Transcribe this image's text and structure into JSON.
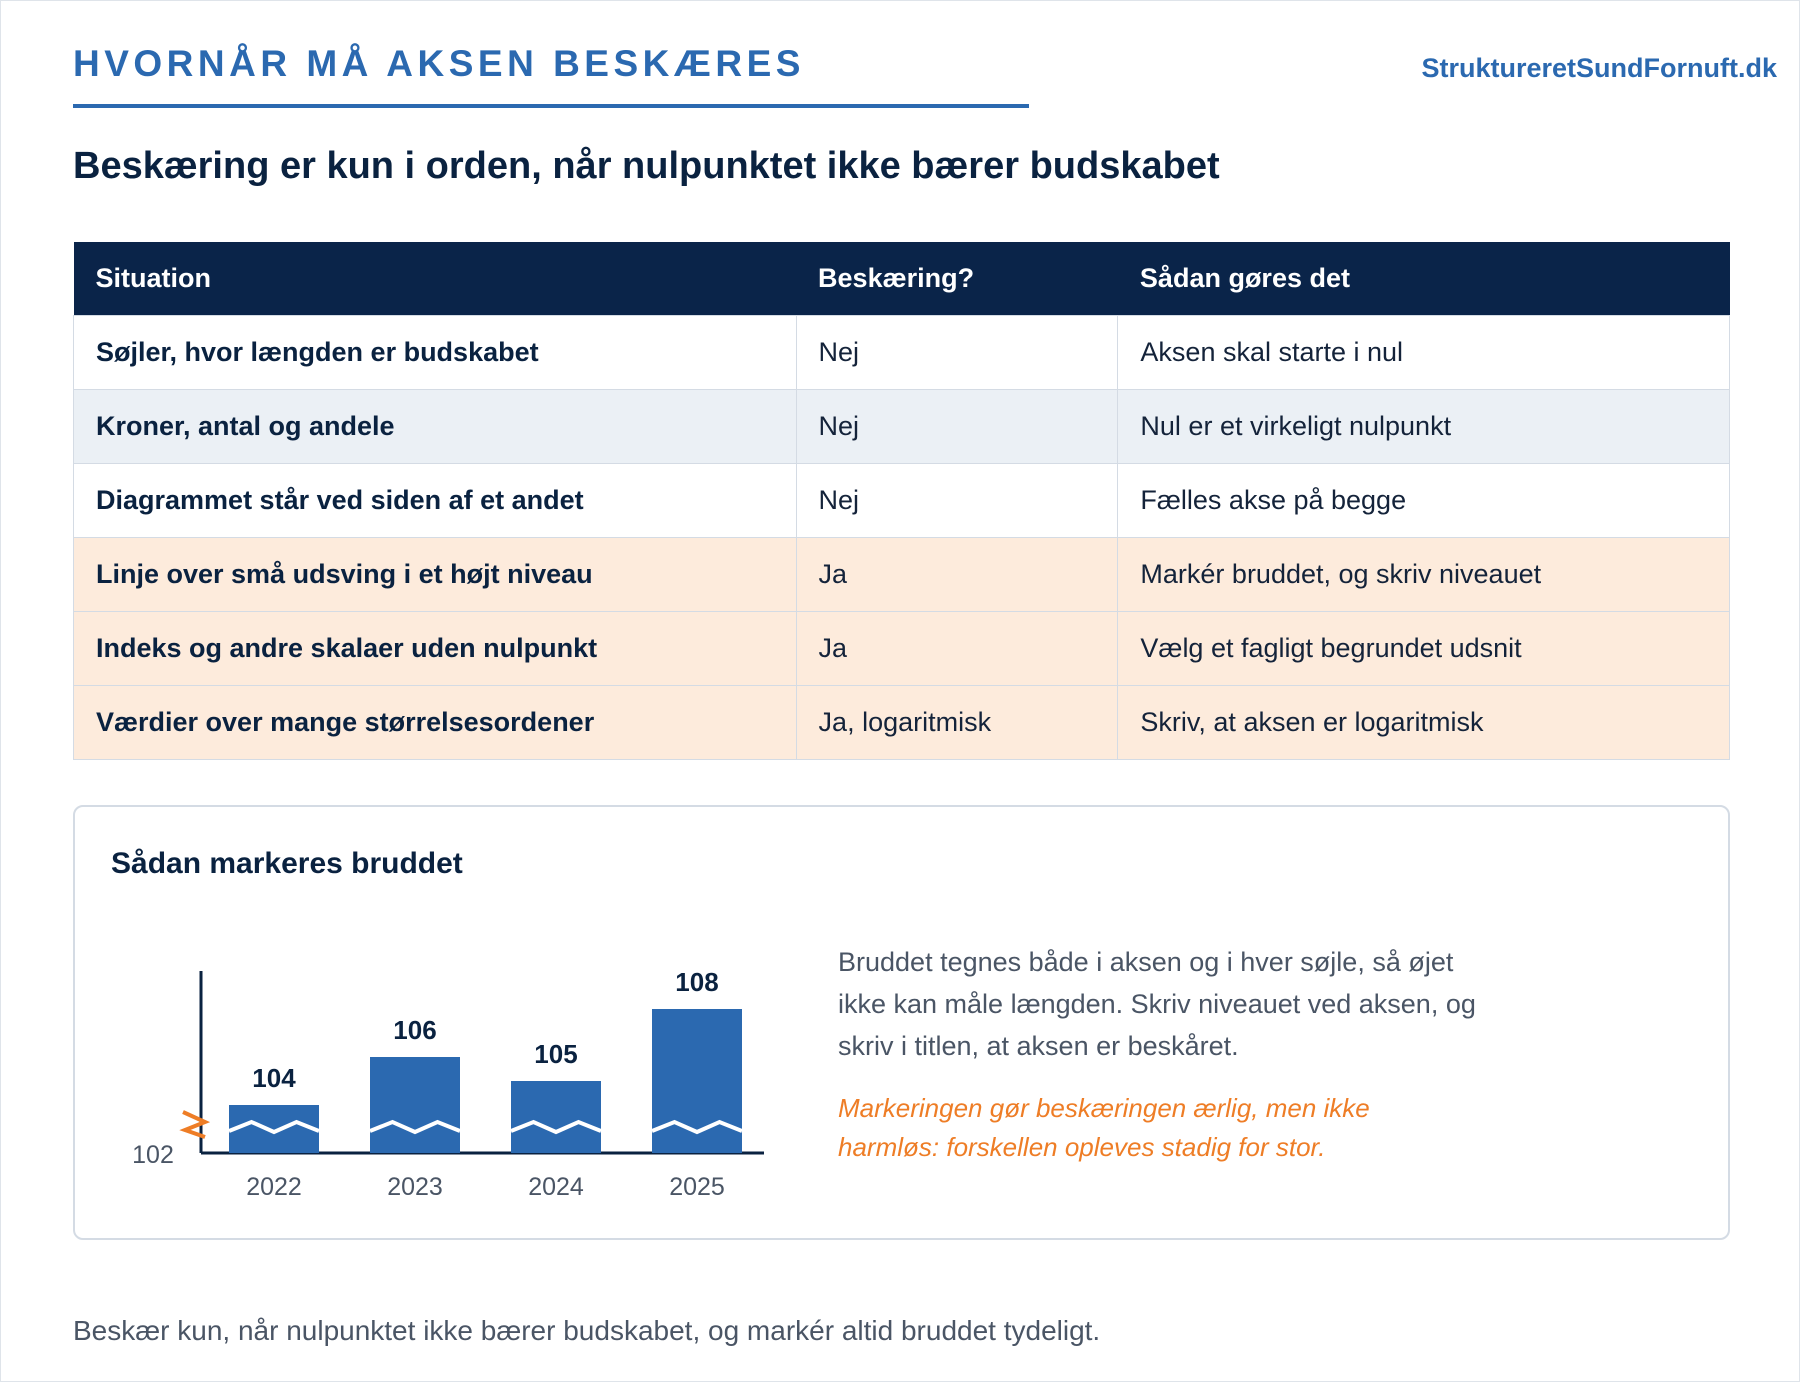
{
  "header": {
    "kicker": "HVORNÅR MÅ AKSEN BESKÆRES",
    "brand": "StruktureretSundFornuft.dk"
  },
  "headline": "Beskæring er kun i orden, når nulpunktet ikke bærer budskabet",
  "table": {
    "columns": [
      "Situation",
      "Beskæring?",
      "Sådan gøres det"
    ],
    "rows": [
      {
        "situation": "Søjler, hvor længden er budskabet",
        "crop": "Nej",
        "how": "Aksen skal starte i nul"
      },
      {
        "situation": "Kroner, antal og andele",
        "crop": "Nej",
        "how": "Nul er et virkeligt nulpunkt"
      },
      {
        "situation": "Diagrammet står ved siden af et andet",
        "crop": "Nej",
        "how": "Fælles akse på begge"
      },
      {
        "situation": "Linje over små udsving i et højt niveau",
        "crop": "Ja",
        "how": "Markér bruddet, og skriv niveauet"
      },
      {
        "situation": "Indeks og andre skalaer uden nulpunkt",
        "crop": "Ja",
        "how": "Vælg et fagligt begrundet udsnit"
      },
      {
        "situation": "Værdier over mange størrelsesordener",
        "crop": "Ja, logaritmisk",
        "how": "Skriv, at aksen er logaritmisk"
      }
    ],
    "colors": {
      "header_bg": "#0a2449",
      "alt_row": "#ebf0f5",
      "yes_row": "#fdebdc"
    }
  },
  "card": {
    "title": "Sådan markeres bruddet",
    "explanation": "Bruddet tegnes både i aksen og i hver søjle, så øjet ikke kan måle længden. Skriv niveauet ved aksen, og skriv i titlen, at aksen er beskåret.",
    "warning": "Markeringen gør beskæringen ærlig, men ikke harmløs: forskellen opleves stadig for stor."
  },
  "chart_data": {
    "type": "bar",
    "categories": [
      "2022",
      "2023",
      "2024",
      "2025"
    ],
    "values": [
      104,
      106,
      105,
      108
    ],
    "data_labels": [
      "104",
      "106",
      "105",
      "108"
    ],
    "y_base_label": "102",
    "ylim": [
      102,
      108
    ],
    "axis_break": true,
    "bar_color": "#2b69b0",
    "break_color": "#ee7d26"
  },
  "footer": "Beskær kun, når nulpunktet ikke bærer budskabet, og markér altid bruddet tydeligt."
}
